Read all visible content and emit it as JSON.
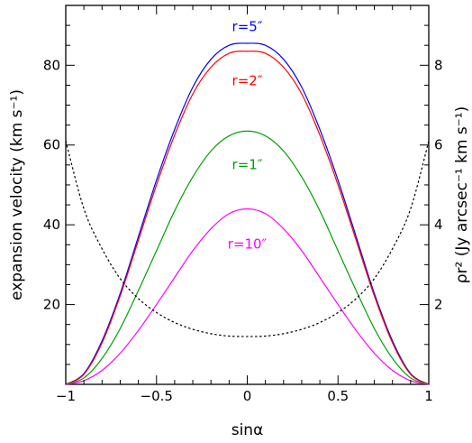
{
  "chart_data": {
    "type": "line",
    "xlabel": "sinα",
    "ylabel_left": "expansion velocity (km s⁻¹)",
    "ylabel_right": "ρr² (Jy arcsec⁻¹ km s⁻¹)",
    "xlim": [
      -1,
      1
    ],
    "ylim_left": [
      0,
      95
    ],
    "ylim_right": [
      0,
      9.5
    ],
    "x_ticks": [
      {
        "value": -1,
        "label": "−1"
      },
      {
        "value": -0.5,
        "label": "−0.5"
      },
      {
        "value": 0,
        "label": "0"
      },
      {
        "value": 0.5,
        "label": "0.5"
      },
      {
        "value": 1,
        "label": "1"
      }
    ],
    "y_ticks_left": [
      {
        "value": 20,
        "label": "20"
      },
      {
        "value": 40,
        "label": "40"
      },
      {
        "value": 60,
        "label": "60"
      },
      {
        "value": 80,
        "label": "80"
      }
    ],
    "y_ticks_right": [
      {
        "value": 2,
        "label": "2"
      },
      {
        "value": 4,
        "label": "4"
      },
      {
        "value": 6,
        "label": "6"
      },
      {
        "value": 8,
        "label": "8"
      }
    ],
    "grid": false,
    "legend": "none",
    "x": [
      -1.0,
      -0.9,
      -0.8,
      -0.7,
      -0.6,
      -0.5,
      -0.4,
      -0.3,
      -0.2,
      -0.1,
      0.0,
      0.1,
      0.2,
      0.3,
      0.4,
      0.5,
      0.6,
      0.7,
      0.8,
      0.9,
      1.0
    ],
    "series": [
      {
        "name": "r=5″",
        "color": "#0000ff",
        "axis": "left",
        "style": "solid",
        "values": [
          0,
          2.7,
          10.9,
          22.8,
          37.0,
          51.2,
          63.9,
          74.5,
          81.5,
          85.0,
          85.5,
          85.0,
          81.5,
          74.5,
          63.9,
          51.2,
          37.0,
          22.8,
          10.9,
          2.7,
          0
        ]
      },
      {
        "name": "r=2″",
        "color": "#ff0000",
        "axis": "left",
        "style": "solid",
        "values": [
          0,
          2.5,
          10.4,
          22.2,
          36.1,
          50.0,
          62.5,
          72.8,
          79.5,
          83.0,
          83.5,
          83.0,
          79.5,
          72.8,
          62.5,
          50.0,
          36.1,
          22.2,
          10.4,
          2.5,
          0
        ]
      },
      {
        "name": "r=1″",
        "color": "#00a000",
        "axis": "left",
        "style": "solid",
        "values": [
          0,
          1.6,
          6.5,
          14.0,
          23.5,
          33.5,
          43.5,
          52.0,
          58.5,
          62.3,
          63.5,
          62.3,
          58.5,
          52.0,
          43.5,
          33.5,
          23.5,
          14.0,
          6.5,
          1.6,
          0
        ]
      },
      {
        "name": "r=10″",
        "color": "#ff00ff",
        "axis": "left",
        "style": "solid",
        "values": [
          0,
          0.9,
          3.5,
          7.8,
          13.5,
          20.0,
          26.8,
          33.5,
          39.0,
          42.8,
          44.0,
          42.8,
          39.0,
          33.5,
          26.8,
          20.0,
          13.5,
          7.8,
          3.5,
          0.9,
          0
        ]
      },
      {
        "name": "",
        "color": "#000000",
        "axis": "right",
        "style": "dotted",
        "values": [
          6.1,
          4.4,
          3.4,
          2.65,
          2.15,
          1.8,
          1.55,
          1.38,
          1.27,
          1.21,
          1.2,
          1.21,
          1.27,
          1.38,
          1.55,
          1.8,
          2.15,
          2.65,
          3.4,
          4.4,
          6.1
        ]
      }
    ],
    "annotations": [
      {
        "text": "r=5″",
        "color": "#0000ff",
        "x": 0.0,
        "y": 88.5
      },
      {
        "text": "r=2″",
        "color": "#ff0000",
        "x": 0.0,
        "y": 75.0
      },
      {
        "text": "r=1″",
        "color": "#00a000",
        "x": 0.0,
        "y": 54.0
      },
      {
        "text": "r=10″",
        "color": "#ff00ff",
        "x": 0.0,
        "y": 34.0
      }
    ]
  }
}
